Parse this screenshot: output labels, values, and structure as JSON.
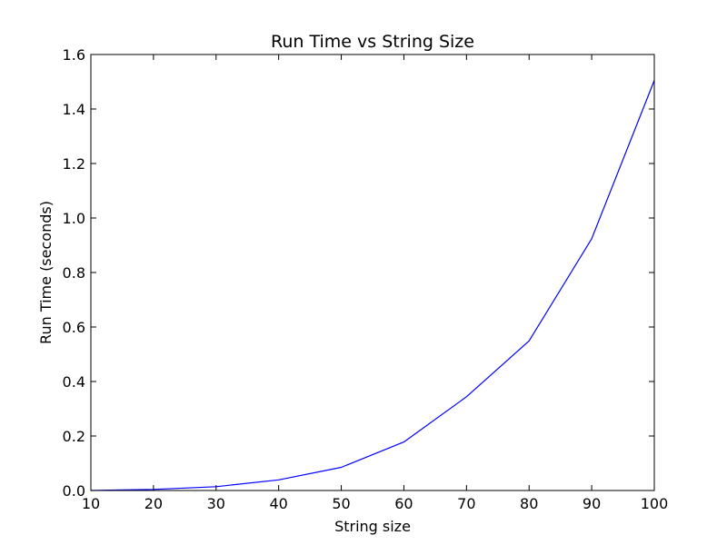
{
  "chart_data": {
    "type": "line",
    "title": "Run Time vs String Size",
    "xlabel": "String size",
    "ylabel": "Run Time (seconds)",
    "xlim": [
      10,
      100
    ],
    "ylim": [
      0.0,
      1.6
    ],
    "xticks": [
      10,
      20,
      30,
      40,
      50,
      60,
      70,
      80,
      90,
      100
    ],
    "xtick_labels": [
      "10",
      "20",
      "30",
      "40",
      "50",
      "60",
      "70",
      "80",
      "90",
      "100"
    ],
    "yticks": [
      0.0,
      0.2,
      0.4,
      0.6,
      0.8,
      1.0,
      1.2,
      1.4,
      1.6
    ],
    "ytick_labels": [
      "0.0",
      "0.2",
      "0.4",
      "0.6",
      "0.8",
      "1.0",
      "1.2",
      "1.4",
      "1.6"
    ],
    "grid": false,
    "legend": "none",
    "series": [
      {
        "color": "#0000ff",
        "x": [
          10,
          20,
          30,
          40,
          50,
          60,
          70,
          80,
          90,
          100
        ],
        "y": [
          0.0,
          0.004,
          0.014,
          0.039,
          0.085,
          0.178,
          0.344,
          0.549,
          0.924,
          1.505
        ]
      }
    ]
  }
}
